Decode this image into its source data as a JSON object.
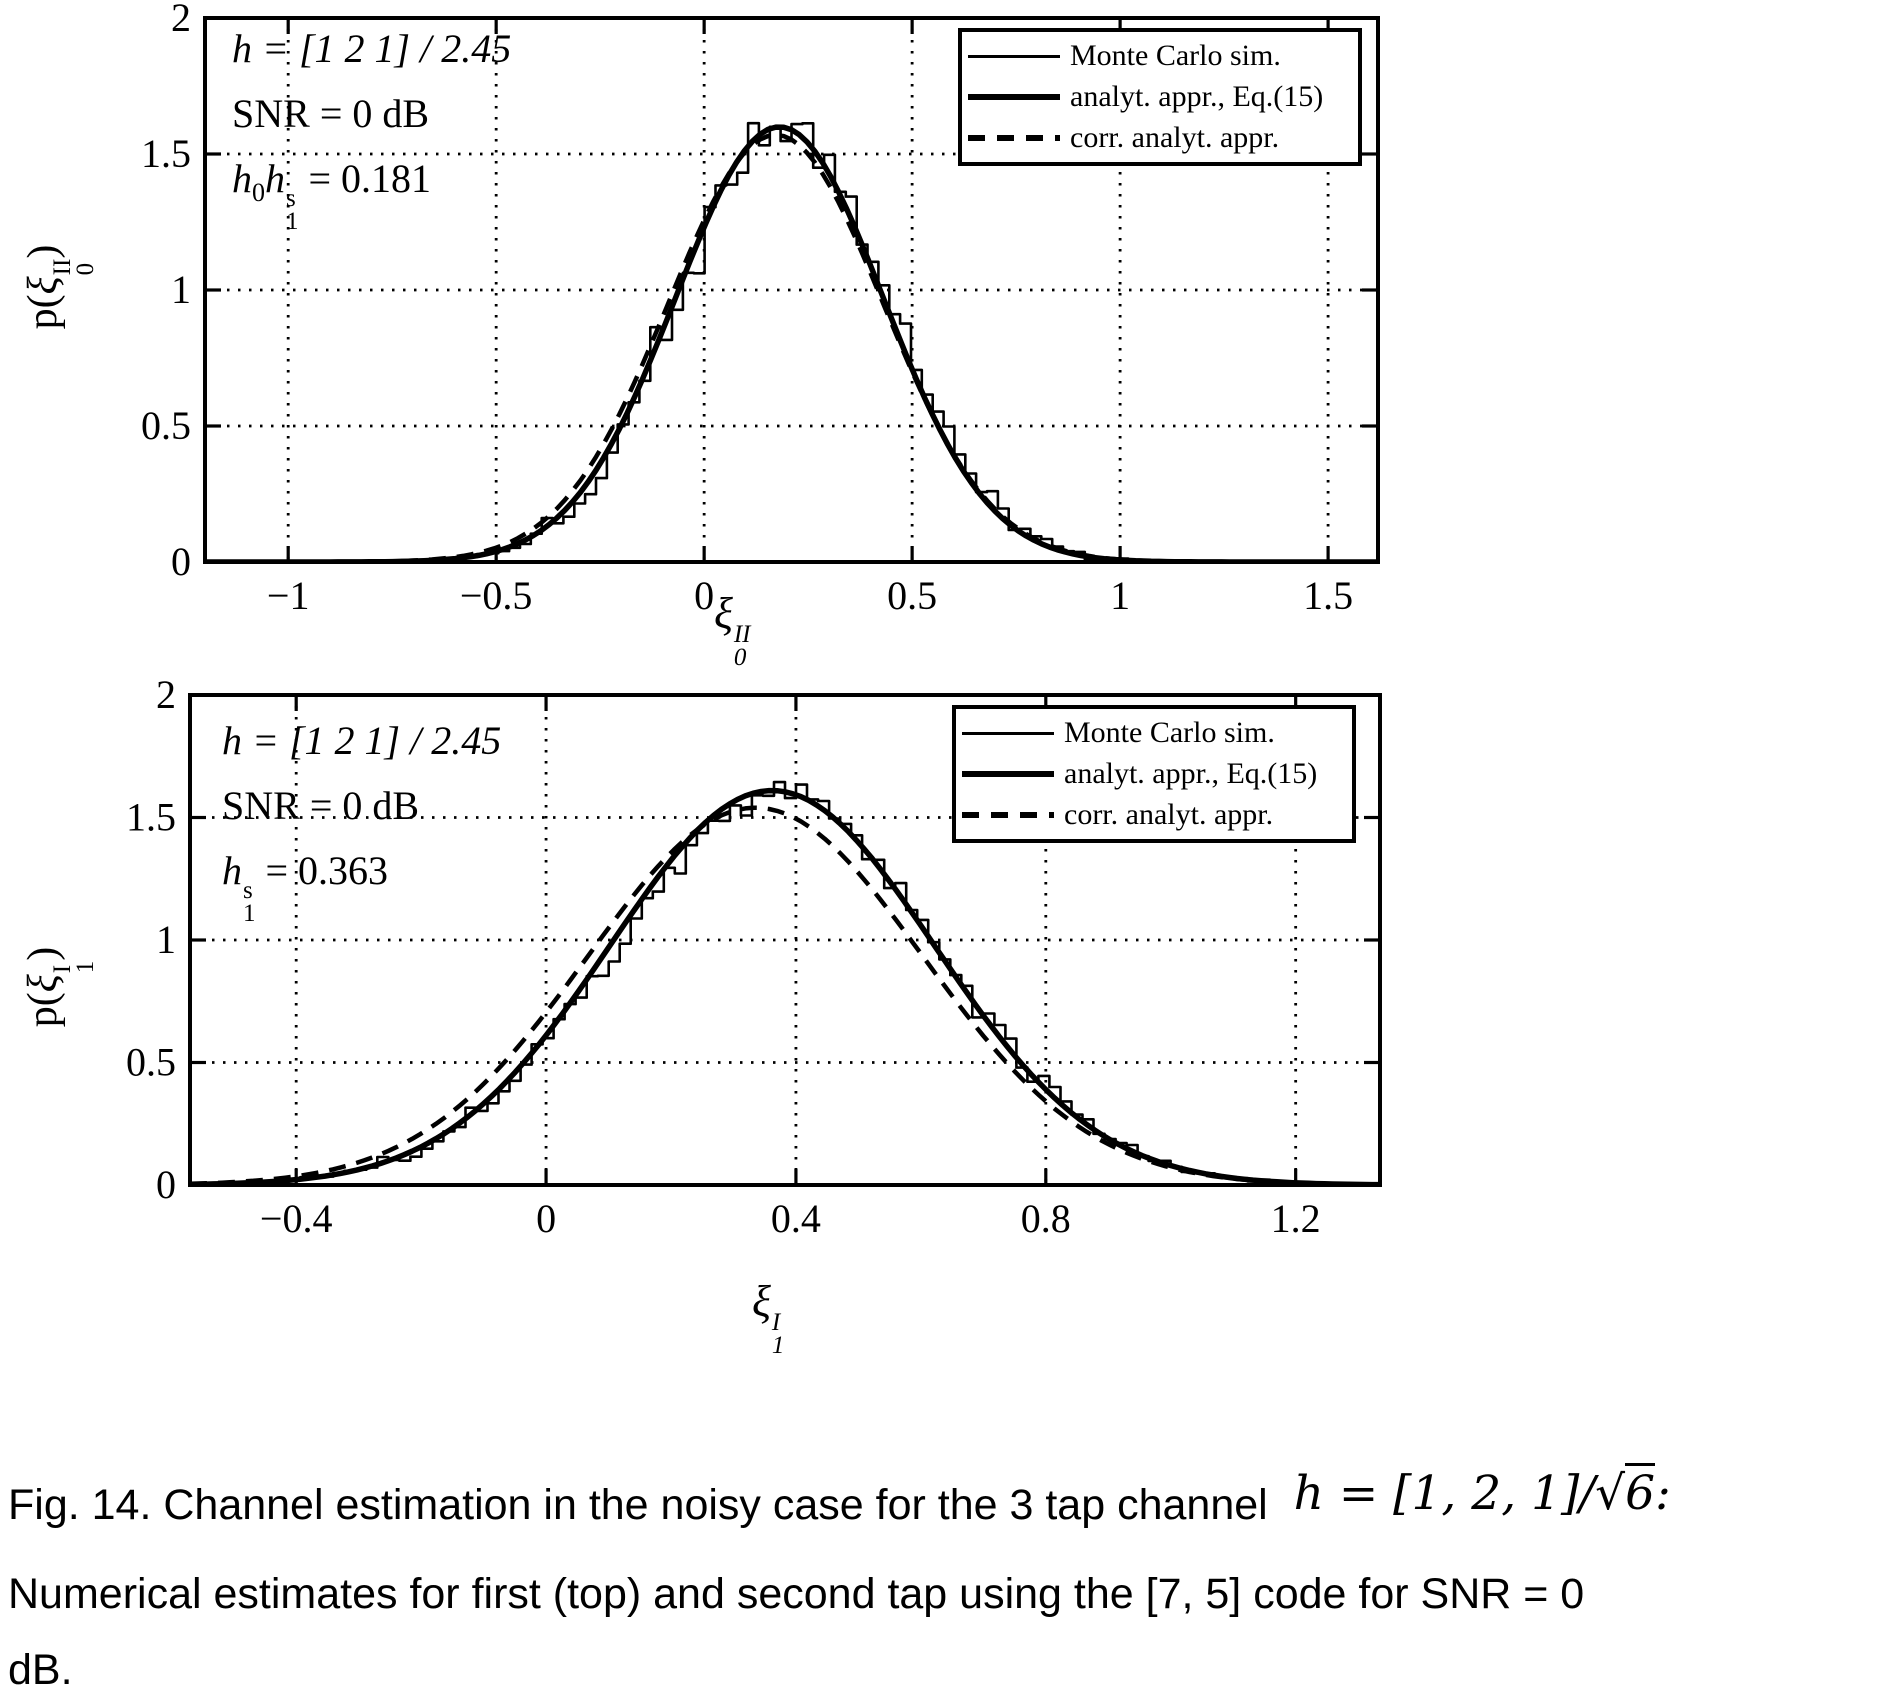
{
  "page": {
    "background": "#ffffff",
    "ink": "#000000"
  },
  "caption": {
    "line1": "Fig. 14. Channel estimation in the noisy case for the 3 tap channel",
    "math_pre": "h = [1, 2, 1]/",
    "math_sqrt": "√",
    "math_radicand": "6",
    "math_post": ":",
    "line2": "Numerical estimates for first (top) and second tap using the [7, 5] code for SNR = 0",
    "line3": "dB."
  },
  "chart_data": [
    {
      "id": "top",
      "type": "line",
      "title": "",
      "xlabel": {
        "base": "ξ",
        "sub": "0",
        "sup": "II"
      },
      "ylabel": {
        "prefix": "p(",
        "base": "ξ",
        "sub": "0",
        "sup": "II",
        "suffix": ")"
      },
      "xlim": [
        -1.2,
        1.62
      ],
      "ylim": [
        0,
        2
      ],
      "xticks": [
        -1,
        -0.5,
        0,
        0.5,
        1,
        1.5
      ],
      "yticks": [
        0,
        0.5,
        1,
        1.5,
        2
      ],
      "grid": "dotted",
      "legend_position": "top-right",
      "legend": [
        "Monte Carlo sim.",
        "analyt. appr., Eq.(15)",
        "corr. analyt. appr."
      ],
      "annotations": {
        "channel": "h = [1 2 1] / 2.45",
        "snr": "SNR = 0 dB",
        "tap_var1": "h",
        "tap_var1_sub": "0",
        "tap_var2": "h",
        "tap_var2_sub": "1",
        "tap_var2_sup": "s",
        "tap_value": " = 0.181"
      },
      "series": [
        {
          "name": "Monte Carlo sim.",
          "style": "thin-noisy",
          "distribution": "gaussian",
          "mean": 0.181,
          "sigma": 0.25,
          "peak": 1.6,
          "noise_amp": 0.1,
          "noise_seed": 9
        },
        {
          "name": "analyt. appr., Eq.(15)",
          "style": "thick-solid",
          "distribution": "gaussian",
          "mean": 0.181,
          "sigma": 0.25,
          "peak": 1.6
        },
        {
          "name": "corr. analyt. appr.",
          "style": "thick-dashed",
          "distribution": "gaussian",
          "mean": 0.172,
          "sigma": 0.258,
          "peak": 1.57
        }
      ]
    },
    {
      "id": "bottom",
      "type": "line",
      "title": "",
      "xlabel": {
        "base": "ξ",
        "sub": "1",
        "sup": "I"
      },
      "ylabel": {
        "prefix": "p(",
        "base": "ξ",
        "sub": "1",
        "sup": "I",
        "suffix": ")"
      },
      "xlim": [
        -0.57,
        1.335
      ],
      "ylim": [
        0,
        2
      ],
      "xticks": [
        -0.4,
        0,
        0.4,
        0.8,
        1.2
      ],
      "yticks": [
        0,
        0.5,
        1,
        1.5,
        2
      ],
      "grid": "dotted",
      "legend_position": "top-right",
      "legend": [
        "Monte Carlo sim.",
        "analyt. appr., Eq.(15)",
        "corr. analyt. appr."
      ],
      "annotations": {
        "channel": "h = [1 2 1] / 2.45",
        "snr": "SNR = 0 dB",
        "tap_var1": "",
        "tap_var1_sub": "",
        "tap_var2": "h",
        "tap_var2_sub": "1",
        "tap_var2_sup": "s",
        "tap_value": " = 0.363"
      },
      "series": [
        {
          "name": "Monte Carlo sim.",
          "style": "thin-noisy",
          "distribution": "gaussian",
          "mean": 0.36,
          "sigma": 0.26,
          "peak": 1.6,
          "noise_amp": 0.09,
          "noise_seed": 23
        },
        {
          "name": "analyt. appr., Eq.(15)",
          "style": "thick-solid",
          "distribution": "gaussian",
          "mean": 0.362,
          "sigma": 0.26,
          "peak": 1.61
        },
        {
          "name": "corr. analyt. appr.",
          "style": "thick-dashed",
          "distribution": "gaussian",
          "mean": 0.335,
          "sigma": 0.268,
          "peak": 1.54
        }
      ]
    }
  ]
}
